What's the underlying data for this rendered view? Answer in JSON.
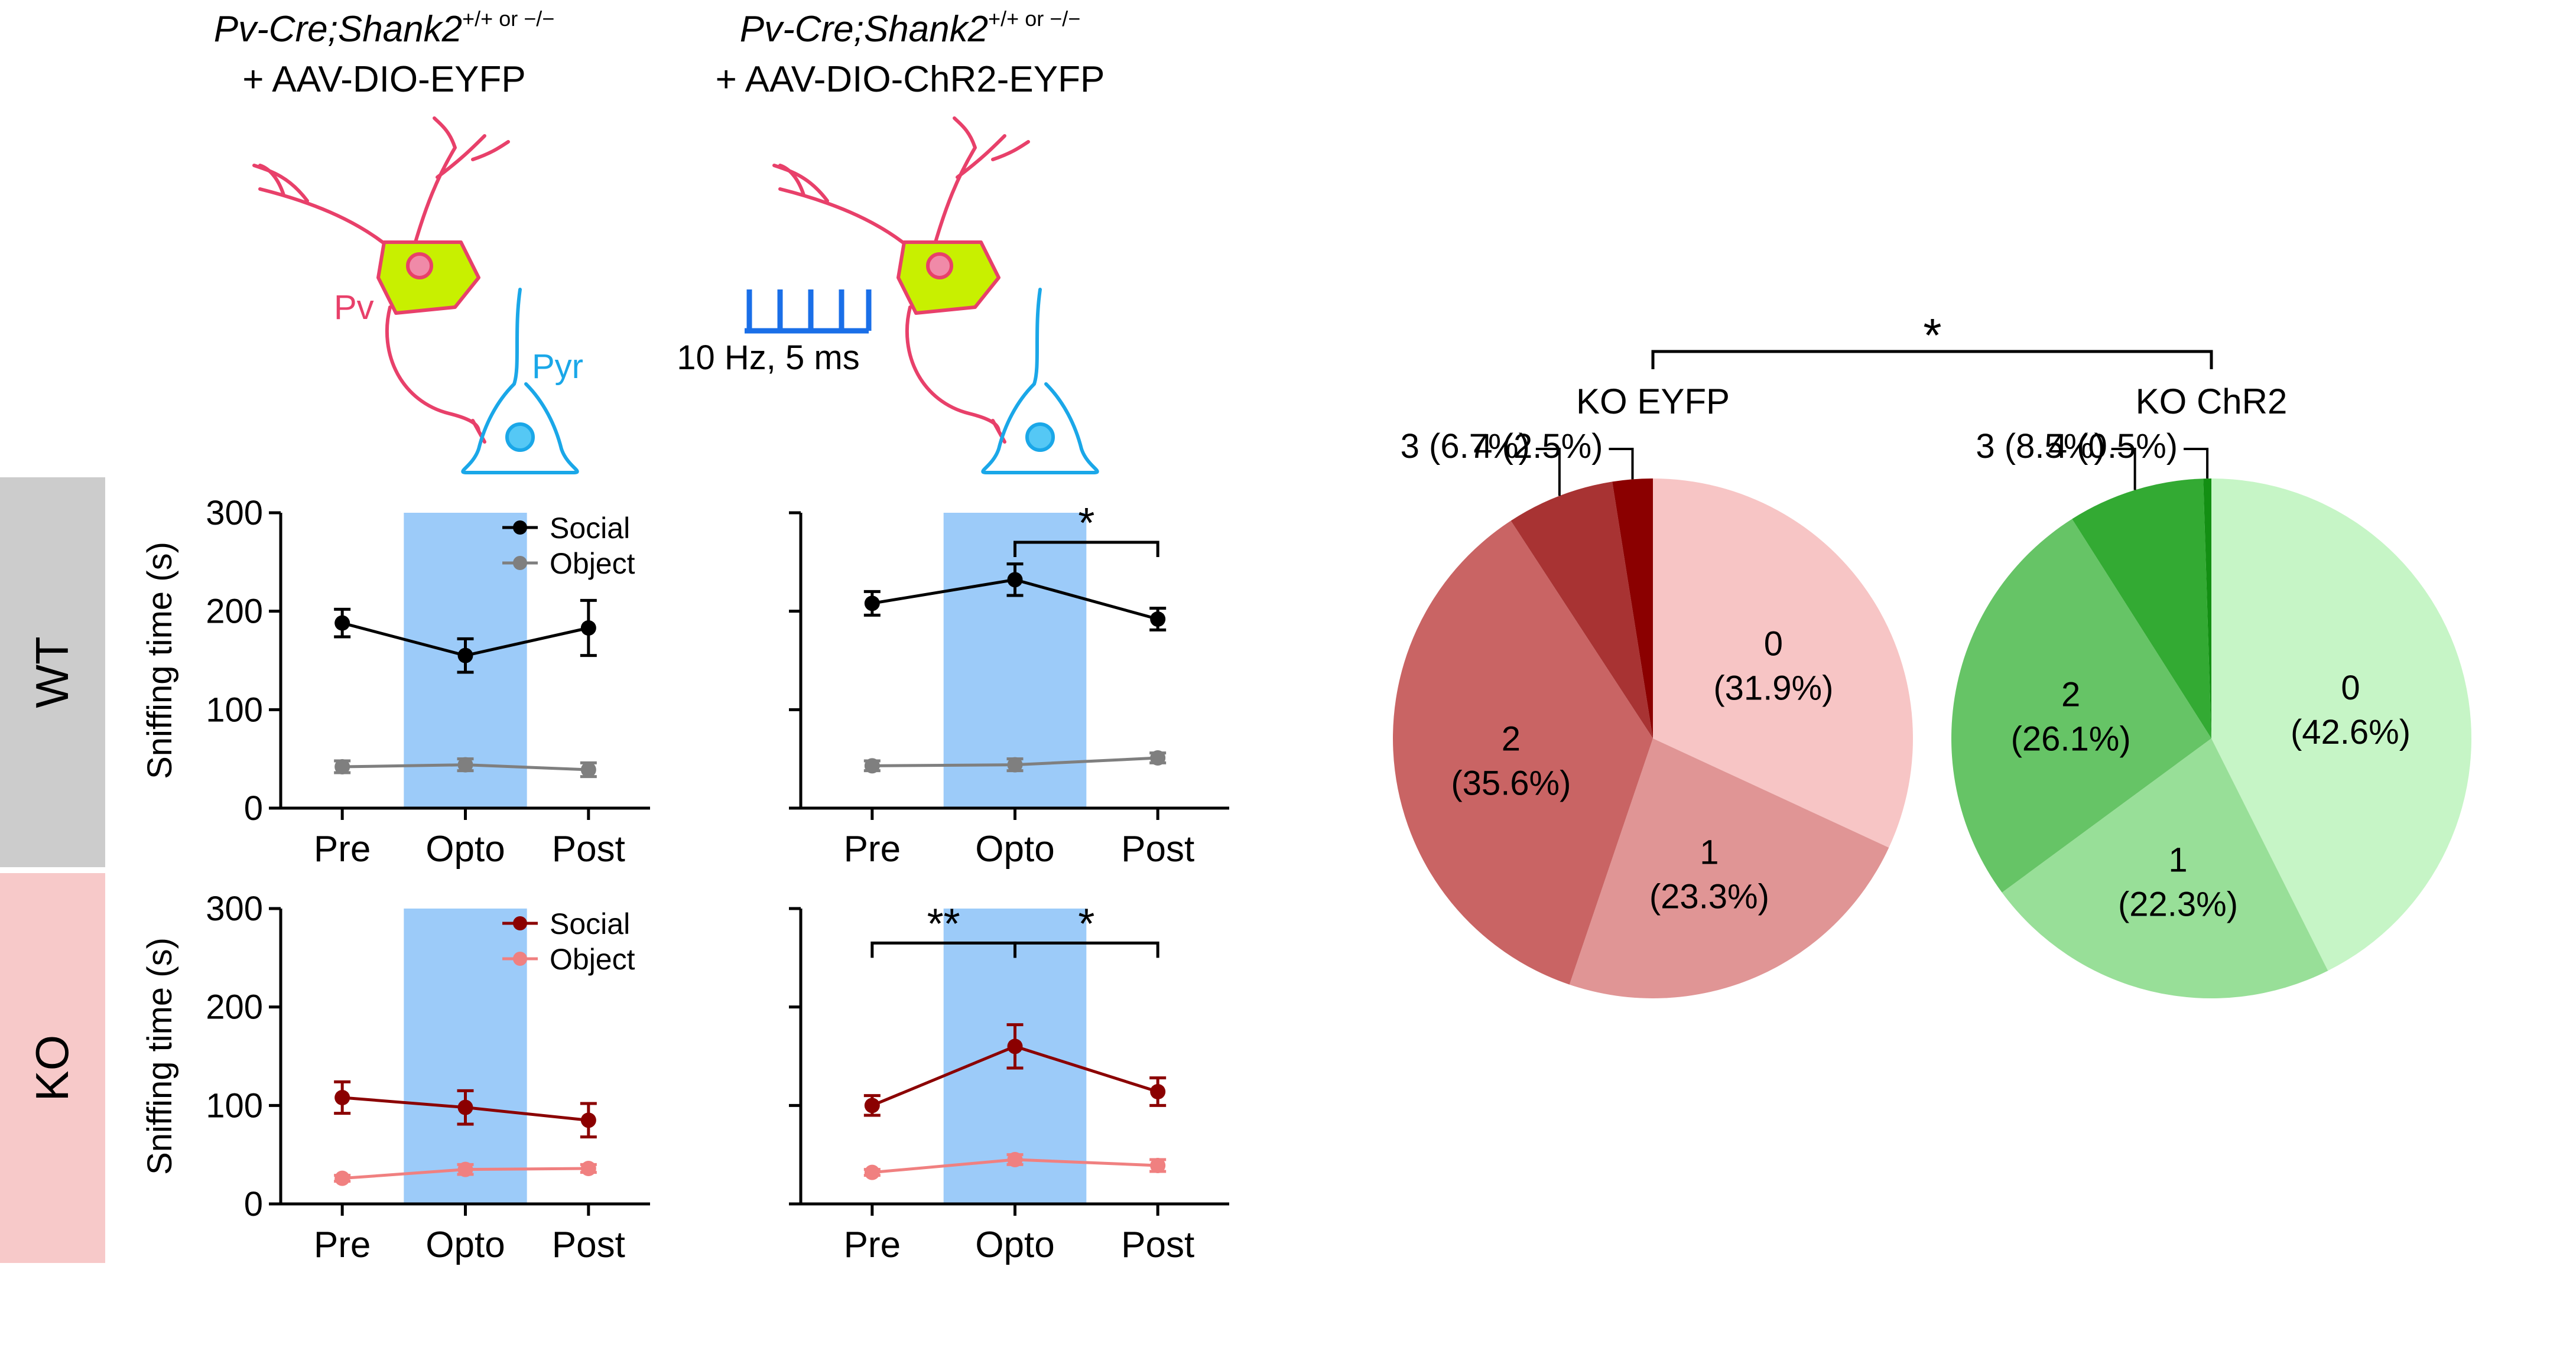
{
  "header": {
    "left": {
      "italic": "Pv-Cre;Shank2",
      "sup": "+/+ or −/−",
      "construct": "+ AAV-DIO-EYFP"
    },
    "right": {
      "italic": "Pv-Cre;Shank2",
      "sup": "+/+ or −/−",
      "construct": "+ AAV-DIO-ChR2-EYFP"
    }
  },
  "schematic": {
    "pv_label": "Pv",
    "pyr_label": "Pyr",
    "stim_label": "10 Hz, 5 ms"
  },
  "rows": [
    {
      "label": "WT",
      "row_color": "#cccccc"
    },
    {
      "label": "KO",
      "row_color": "#f7c9c9"
    }
  ],
  "colors": {
    "neuron_pv": "#e8406a",
    "soma_pv": "#c8f000",
    "neuron_pyr": "#1aa7e8",
    "stim": "#1a6fe8",
    "opto_band": "#9ccbf9",
    "wt_social": "#000000",
    "wt_object": "#7f7f7f",
    "ko_social": "#8b0000",
    "ko_object": "#f08080"
  },
  "chart_data": [
    {
      "type": "line",
      "id": "wt-eyfp",
      "ylabel": "Sniffing time (s)",
      "categories": [
        "Pre",
        "Opto",
        "Post"
      ],
      "ylim": [
        0,
        300
      ],
      "yticks": [
        0,
        100,
        200,
        300
      ],
      "opto_band": "Opto",
      "legend": true,
      "series": [
        {
          "name": "Social",
          "values": [
            188,
            155,
            183
          ],
          "err": [
            14,
            17,
            28
          ],
          "color": "#000000"
        },
        {
          "name": "Object",
          "values": [
            42,
            44,
            39
          ],
          "err": [
            6,
            6,
            7
          ],
          "color": "#7f7f7f"
        }
      ],
      "significance": []
    },
    {
      "type": "line",
      "id": "wt-chr2",
      "ylabel": "",
      "categories": [
        "Pre",
        "Opto",
        "Post"
      ],
      "ylim": [
        0,
        300
      ],
      "yticks": [
        0,
        100,
        200,
        300
      ],
      "opto_band": "Opto",
      "legend": false,
      "series": [
        {
          "values": [
            208,
            232,
            192
          ],
          "err": [
            12,
            16,
            11
          ],
          "color": "#000000"
        },
        {
          "values": [
            43,
            44,
            51
          ],
          "err": [
            5,
            6,
            5
          ],
          "color": "#7f7f7f"
        }
      ],
      "significance": [
        {
          "from": 1,
          "to": 2,
          "label": "*",
          "level": 270
        }
      ]
    },
    {
      "type": "line",
      "id": "ko-eyfp",
      "ylabel": "Sniffing time (s)",
      "categories": [
        "Pre",
        "Opto",
        "Post"
      ],
      "ylim": [
        0,
        300
      ],
      "yticks": [
        0,
        100,
        200,
        300
      ],
      "opto_band": "Opto",
      "legend": true,
      "series": [
        {
          "name": "Social",
          "values": [
            108,
            98,
            85
          ],
          "err": [
            16,
            17,
            17
          ],
          "color": "#8b0000"
        },
        {
          "name": "Object",
          "values": [
            26,
            35,
            36
          ],
          "err": [
            3,
            5,
            4
          ],
          "color": "#f08080"
        }
      ],
      "significance": []
    },
    {
      "type": "line",
      "id": "ko-chr2",
      "ylabel": "",
      "categories": [
        "Pre",
        "Opto",
        "Post"
      ],
      "ylim": [
        0,
        300
      ],
      "yticks": [
        0,
        100,
        200,
        300
      ],
      "opto_band": "Opto",
      "legend": false,
      "series": [
        {
          "values": [
            100,
            160,
            114
          ],
          "err": [
            10,
            22,
            14
          ],
          "color": "#8b0000"
        },
        {
          "values": [
            32,
            45,
            39
          ],
          "err": [
            3,
            5,
            6
          ],
          "color": "#f08080"
        }
      ],
      "significance": [
        {
          "from": 0,
          "to": 1,
          "label": "**",
          "level": 265
        },
        {
          "from": 1,
          "to": 2,
          "label": "*",
          "level": 265
        }
      ]
    },
    {
      "type": "pie",
      "id": "ko-eyfp-pie",
      "title": "KO EYFP",
      "slices": [
        {
          "label": "0",
          "value": 31.9,
          "display": "(31.9%)",
          "color": "#f7c5c5"
        },
        {
          "label": "1",
          "value": 23.3,
          "display": "(23.3%)",
          "color": "#e09595"
        },
        {
          "label": "2",
          "value": 35.6,
          "display": "(35.6%)",
          "color": "#c96464"
        },
        {
          "label": "3",
          "value": 6.7,
          "display": "3 (6.7%)",
          "color": "#a83333"
        },
        {
          "label": "4",
          "value": 2.5,
          "display": "4 (2.5%)",
          "color": "#8b0000"
        }
      ]
    },
    {
      "type": "pie",
      "id": "ko-chr2-pie",
      "title": "KO ChR2",
      "slices": [
        {
          "label": "0",
          "value": 42.6,
          "display": "(42.6%)",
          "color": "#c6f5c6"
        },
        {
          "label": "1",
          "value": 22.3,
          "display": "(22.3%)",
          "color": "#98df98"
        },
        {
          "label": "2",
          "value": 26.1,
          "display": "(26.1%)",
          "color": "#66c466"
        },
        {
          "label": "3",
          "value": 8.5,
          "display": "3 (8.5%)",
          "color": "#33aa33"
        },
        {
          "label": "4",
          "value": 0.5,
          "display": "4 (0.5%)",
          "color": "#138f13"
        }
      ]
    }
  ],
  "pie_comparison": {
    "label": "*"
  }
}
